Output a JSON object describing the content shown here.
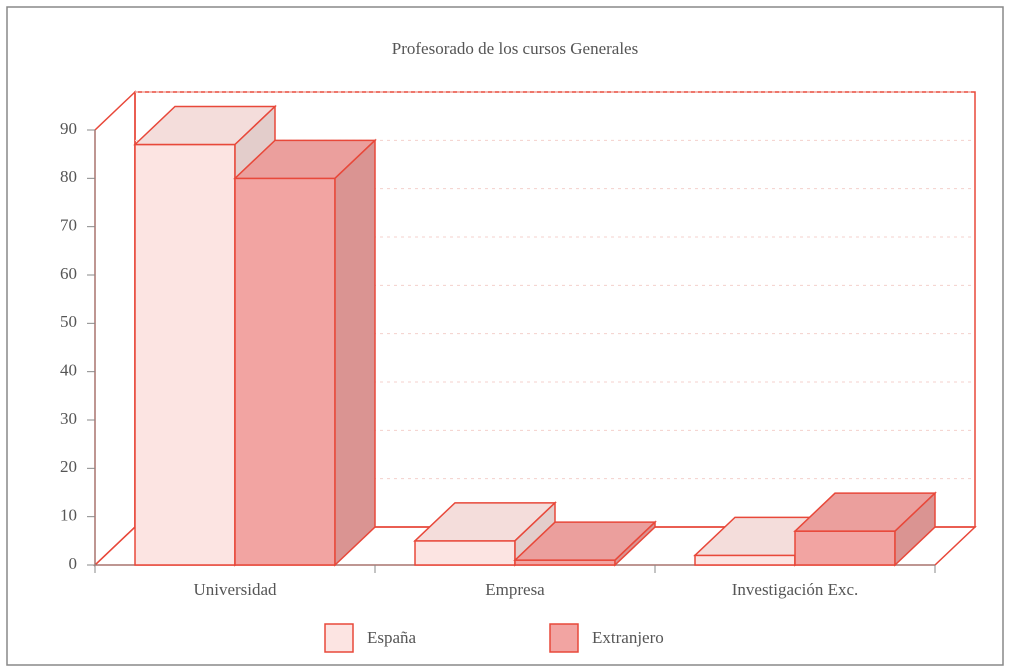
{
  "chart_data": {
    "type": "bar",
    "title": "Profesorado de los cursos Generales",
    "categories": [
      "Universidad",
      "Empresa",
      "Investigación Exc."
    ],
    "series": [
      {
        "name": "España",
        "color": "#fce4e2",
        "values": [
          87,
          5,
          2
        ]
      },
      {
        "name": "Extranjero",
        "color": "#f2a4a2",
        "values": [
          80,
          1,
          7
        ]
      }
    ],
    "ylim": [
      0,
      90
    ],
    "yticks": [
      0,
      10,
      20,
      30,
      40,
      50,
      60,
      70,
      80,
      90
    ],
    "grid": true
  }
}
